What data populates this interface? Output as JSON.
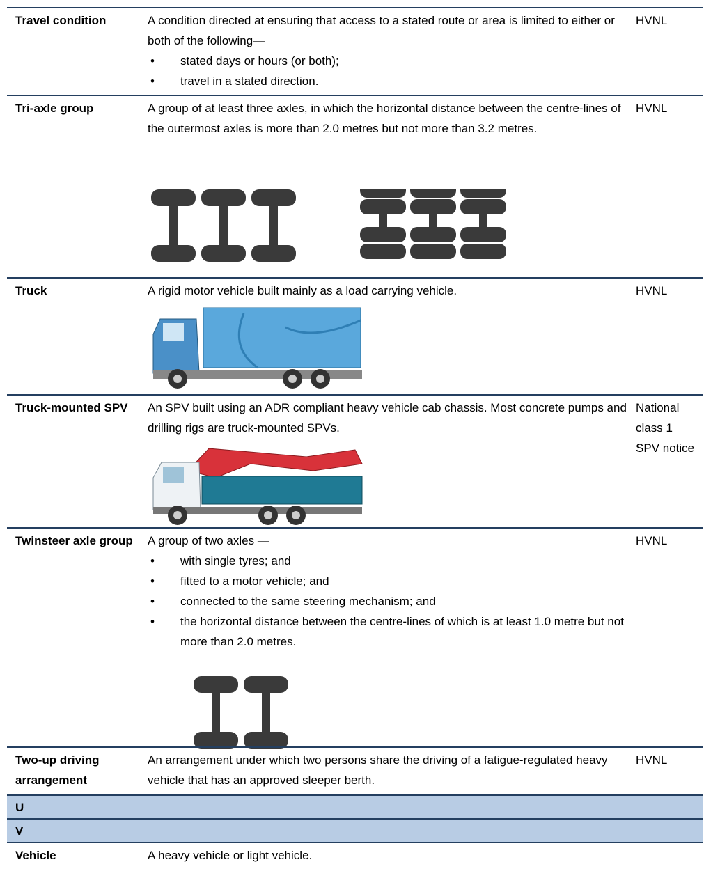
{
  "rows": [
    {
      "term": "Travel condition",
      "definition": "A condition directed at ensuring that access to a stated route or area is limited to either or both of the following—",
      "bullets": [
        "stated days or hours (or both);",
        "travel in a stated direction."
      ],
      "source": "HVNL"
    },
    {
      "term": "Tri-axle group",
      "definition": "A group of at least three axles, in which the horizontal distance between the centre-lines of the outermost axles is more than 2.0 metres but not more than 3.2 metres.",
      "source": "HVNL"
    },
    {
      "term": "Truck",
      "definition": "A rigid motor vehicle built mainly as a load carrying vehicle.",
      "source": "HVNL"
    },
    {
      "term": "Truck-mounted SPV",
      "definition": "An SPV built using an ADR compliant heavy vehicle cab chassis. Most concrete pumps and drilling rigs are truck-mounted SPVs.",
      "source": "National class 1 SPV notice"
    },
    {
      "term": "Twinsteer axle group",
      "definition": "A group of two axles —",
      "bullets": [
        "with single tyres; and",
        "fitted to a motor vehicle; and",
        "connected to the same steering mechanism; and",
        "the horizontal distance between the centre-lines of which is at least 1.0 metre but not more than 2.0 metres."
      ],
      "source": "HVNL"
    },
    {
      "term": "Two-up driving arrangement",
      "definition": "An arrangement under which two persons share the driving of a fatigue-regulated heavy vehicle that has an approved sleeper berth.",
      "source": "HVNL"
    }
  ],
  "sections": [
    "U",
    "V"
  ],
  "last_row": {
    "term": "Vehicle",
    "definition": "A heavy vehicle or light vehicle."
  }
}
